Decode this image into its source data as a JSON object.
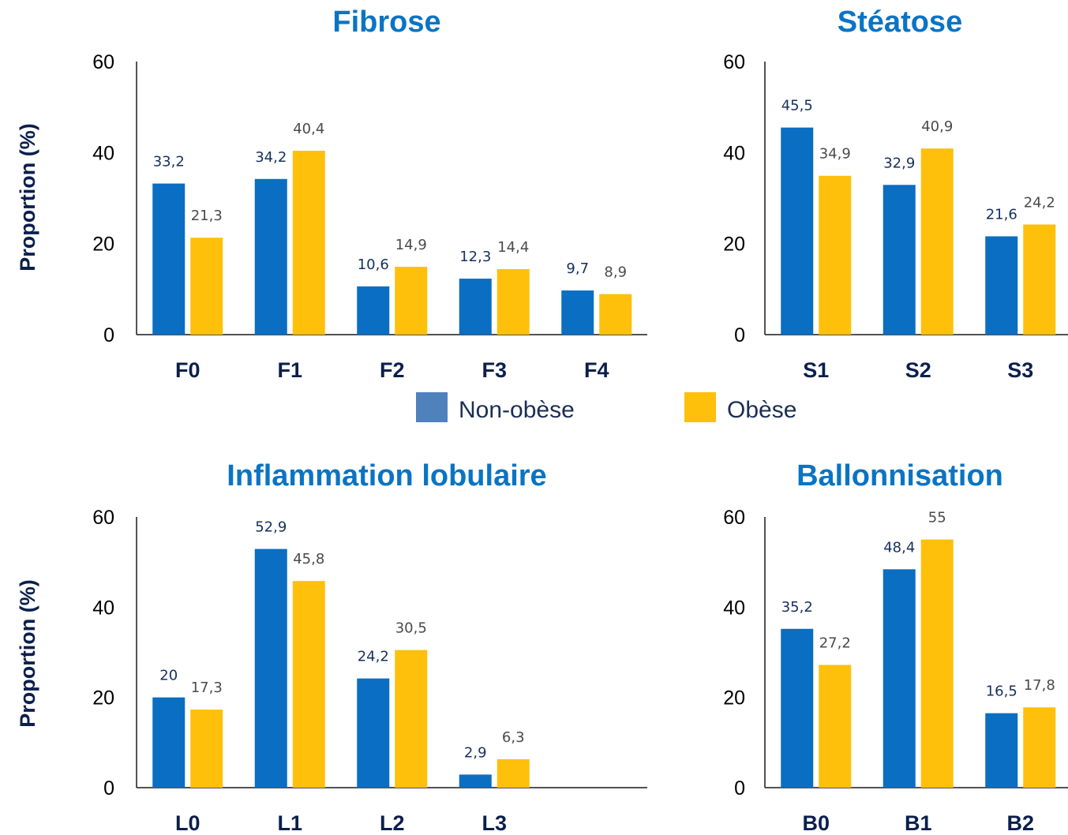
{
  "colors": {
    "non_obese": "#0a6ec2",
    "obese": "#fec00a",
    "legend_non_obese": "#4f81bd"
  },
  "y_axis_label": "Proportion (%)",
  "legend": [
    {
      "label": "Non-obèse",
      "color": "#4f81bd"
    },
    {
      "label": "Obèse",
      "color": "#fec00a"
    }
  ],
  "chart_data": [
    {
      "type": "bar",
      "title": "Fibrose",
      "ylabel": "Proportion (%)",
      "ylim": [
        0,
        60
      ],
      "yticks": [
        "0",
        "20",
        "40",
        "60"
      ],
      "categories": [
        "F0",
        "F1",
        "F2",
        "F3",
        "F4"
      ],
      "series": [
        {
          "name": "Non-obèse",
          "values": [
            33.2,
            34.2,
            10.6,
            12.3,
            9.7
          ],
          "labels": [
            "33,2",
            "34,2",
            "10,6",
            "12,3",
            "9,7"
          ]
        },
        {
          "name": "Obèse",
          "values": [
            21.3,
            40.4,
            14.9,
            14.4,
            8.9
          ],
          "labels": [
            "21,3",
            "40,4",
            "14,9",
            "14,4",
            "8,9"
          ]
        }
      ]
    },
    {
      "type": "bar",
      "title": "Stéatose",
      "ylim": [
        0,
        60
      ],
      "yticks": [
        "0",
        "20",
        "40",
        "60"
      ],
      "categories": [
        "S1",
        "S2",
        "S3"
      ],
      "series": [
        {
          "name": "Non-obèse",
          "values": [
            45.5,
            32.9,
            21.6
          ],
          "labels": [
            "45,5",
            "32,9",
            "21,6"
          ]
        },
        {
          "name": "Obèse",
          "values": [
            34.9,
            40.9,
            24.2
          ],
          "labels": [
            "34,9",
            "40,9",
            "24,2"
          ]
        }
      ]
    },
    {
      "type": "bar",
      "title": "Inflammation lobulaire",
      "ylabel": "Proportion (%)",
      "ylim": [
        0,
        60
      ],
      "yticks": [
        "0",
        "20",
        "40",
        "60"
      ],
      "categories": [
        "L0",
        "L1",
        "L2",
        "L3"
      ],
      "series": [
        {
          "name": "Non-obèse",
          "values": [
            20,
            52.9,
            24.2,
            2.9
          ],
          "labels": [
            "20",
            "52,9",
            "24,2",
            "2,9"
          ]
        },
        {
          "name": "Obèse",
          "values": [
            17.3,
            45.8,
            30.5,
            6.3
          ],
          "labels": [
            "17,3",
            "45,8",
            "30,5",
            "6,3"
          ]
        }
      ]
    },
    {
      "type": "bar",
      "title": "Ballonnisation",
      "ylim": [
        0,
        60
      ],
      "yticks": [
        "0",
        "20",
        "40",
        "60"
      ],
      "categories": [
        "B0",
        "B1",
        "B2"
      ],
      "series": [
        {
          "name": "Non-obèse",
          "values": [
            35.2,
            48.4,
            16.5
          ],
          "labels": [
            "35,2",
            "48,4",
            "16,5"
          ]
        },
        {
          "name": "Obèse",
          "values": [
            27.2,
            55,
            17.8
          ],
          "labels": [
            "27,2",
            "55",
            "17,8"
          ]
        }
      ]
    }
  ]
}
